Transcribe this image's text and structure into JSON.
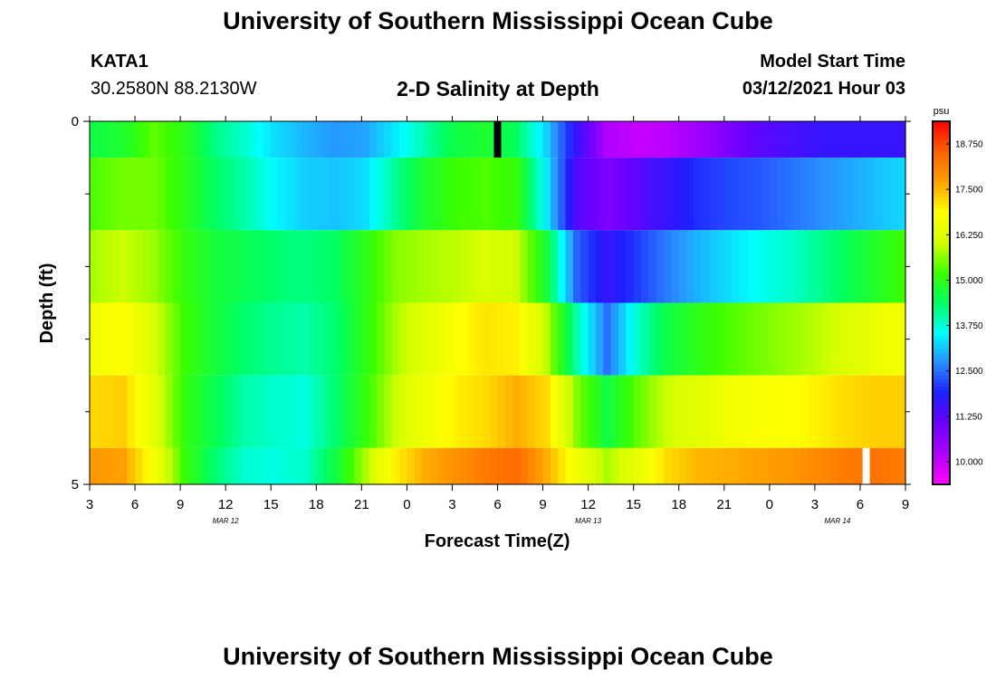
{
  "page": {
    "title_top": "University of Southern Mississippi Ocean Cube",
    "title_bottom": "University of Southern Mississippi Ocean Cube",
    "station_id": "KATA1",
    "station_coords": "30.2580N 88.2130W",
    "plot_title": "2-D Salinity at Depth",
    "model_start_label": "Model Start Time",
    "model_start_value": "03/12/2021 Hour 03"
  },
  "chart_data": {
    "type": "heatmap",
    "title": "2-D Salinity at Depth",
    "xlabel": "Forecast Time(Z)",
    "ylabel": "Depth (ft)",
    "x_ticks": [
      "3",
      "6",
      "9",
      "12",
      "15",
      "18",
      "21",
      "0",
      "3",
      "6",
      "9",
      "12",
      "15",
      "18",
      "21",
      "0",
      "3",
      "6",
      "9"
    ],
    "date_labels": [
      {
        "text": "MAR 12",
        "at_tick": 3
      },
      {
        "text": "MAR 13",
        "at_tick": 11
      },
      {
        "text": "MAR 14",
        "at_tick": 16.5
      }
    ],
    "y_tick_labels": [
      {
        "value": 0,
        "label": "0"
      },
      {
        "value": 5,
        "label": "5"
      }
    ],
    "y_minor_ticks": [
      1,
      2,
      3,
      4
    ],
    "ylim": [
      0,
      5
    ],
    "x_range_hours": [
      0,
      54
    ],
    "depth_bands_ft": [
      0,
      0.5,
      1.5,
      2.5,
      3.5,
      4.5,
      5
    ],
    "hours_start_at": "Mar 12 03Z",
    "salinity_psu": [
      [
        14.6,
        14.8,
        15.4,
        15.0,
        14.2,
        13.8,
        13.3,
        13.0,
        12.8,
        12.9,
        13.4,
        14.0,
        14.6,
        14.8,
        14.4,
        13.2,
        11.6,
        10.2,
        10.0,
        10.1,
        10.4,
        10.8,
        11.2,
        11.4,
        11.6,
        11.6,
        11.6,
        11.6
      ],
      [
        15.3,
        15.5,
        15.5,
        15.0,
        14.4,
        14.0,
        13.5,
        13.2,
        13.1,
        13.3,
        14.1,
        14.8,
        15.2,
        15.3,
        15.1,
        13.4,
        11.3,
        10.8,
        11.2,
        11.6,
        12.0,
        12.2,
        12.3,
        12.5,
        12.7,
        12.9,
        13.1,
        13.3
      ],
      [
        15.8,
        16.0,
        15.7,
        15.1,
        14.7,
        14.5,
        14.3,
        14.2,
        14.4,
        15.0,
        15.6,
        15.8,
        15.9,
        16.1,
        16.0,
        14.7,
        12.4,
        11.6,
        12.1,
        12.6,
        13.0,
        13.3,
        13.6,
        13.8,
        14.1,
        14.5,
        14.9,
        15.3
      ],
      [
        16.6,
        16.9,
        16.1,
        15.2,
        14.7,
        14.3,
        14.1,
        14.0,
        14.3,
        15.0,
        15.8,
        16.3,
        16.8,
        17.1,
        17.0,
        15.9,
        14.0,
        12.5,
        13.8,
        14.6,
        15.0,
        15.3,
        15.5,
        15.7,
        15.9,
        16.2,
        16.5,
        16.7
      ],
      [
        17.2,
        17.3,
        16.3,
        15.1,
        14.5,
        14.0,
        13.8,
        13.7,
        14.3,
        15.1,
        16.0,
        16.6,
        17.0,
        17.2,
        17.6,
        17.2,
        15.6,
        14.6,
        15.4,
        16.0,
        16.3,
        16.6,
        16.8,
        16.8,
        17.0,
        17.2,
        17.3,
        17.3
      ],
      [
        17.8,
        17.7,
        16.7,
        15.2,
        14.3,
        13.8,
        13.7,
        13.8,
        14.6,
        15.8,
        17.0,
        17.6,
        17.9,
        18.2,
        18.4,
        17.6,
        16.6,
        15.8,
        16.4,
        17.2,
        17.5,
        17.6,
        17.7,
        17.8,
        18.0,
        18.2,
        18.3,
        18.1
      ]
    ],
    "colorbar": {
      "unit": "psu",
      "range": [
        9.375,
        19.375
      ],
      "tick_labels": [
        "10.000",
        "11.250",
        "12.500",
        "13.750",
        "15.000",
        "16.250",
        "17.500",
        "18.750"
      ]
    },
    "colors": {
      "scale": [
        "#ff00ff",
        "#b000ff",
        "#6a00ff",
        "#1e1eff",
        "#2a8cff",
        "#00ffff",
        "#00ff60",
        "#3cff00",
        "#d6ff00",
        "#ffff00",
        "#ffa000",
        "#ff6000",
        "#ff0000"
      ],
      "missing_top": "#000000",
      "missing_bottom": "#ffffff"
    },
    "missing_marks": [
      {
        "band": 0,
        "hour": 27.0,
        "color": "black"
      },
      {
        "band": 5,
        "hour": 51.4,
        "color": "white"
      }
    ]
  }
}
